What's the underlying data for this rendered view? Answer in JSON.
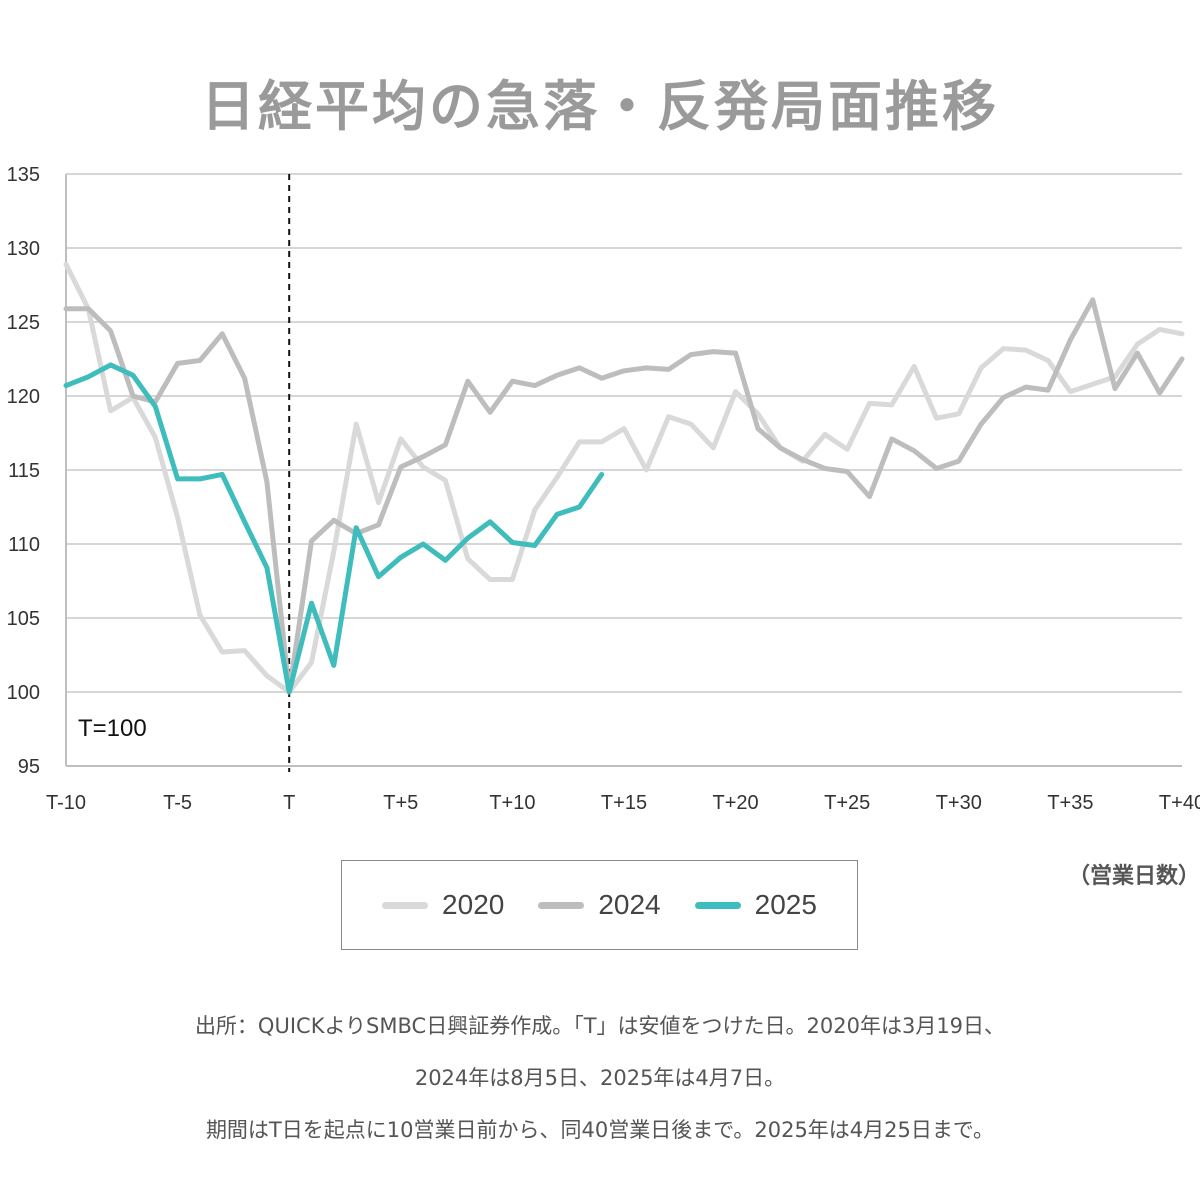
{
  "chart_data": {
    "type": "line",
    "title": "日経平均の急落・反発局面推移",
    "xlabel": "（営業日数）",
    "ylabel": "",
    "ylim": [
      95,
      135
    ],
    "xlim": [
      -10,
      40
    ],
    "y_ticks": [
      "135",
      "130",
      "125",
      "120",
      "115",
      "110",
      "105",
      "100",
      "95"
    ],
    "x_ticks": [
      "T-10",
      "T-5",
      "T",
      "T+5",
      "T+10",
      "T+15",
      "T+20",
      "T+25",
      "T+30",
      "T+35",
      "T+40"
    ],
    "grid": true,
    "reference_line": {
      "x": 0,
      "style": "dashed"
    },
    "annotation": "T=100",
    "series": [
      {
        "name": "2020",
        "color": "#d9d9d9",
        "x": [
          -10,
          -9,
          -8,
          -7,
          -6,
          -5,
          -4,
          -3,
          -2,
          -1,
          0,
          1,
          2,
          3,
          4,
          5,
          6,
          7,
          8,
          9,
          10,
          11,
          12,
          13,
          14,
          15,
          16,
          17,
          18,
          19,
          20,
          21,
          22,
          23,
          24,
          25,
          26,
          27,
          28,
          29,
          30,
          31,
          32,
          33,
          34,
          35,
          36,
          37,
          38,
          39,
          40
        ],
        "values": [
          128.9,
          125.9,
          119.0,
          119.9,
          117.2,
          111.8,
          105.2,
          102.7,
          102.8,
          101.1,
          100.0,
          102.0,
          109.5,
          118.1,
          112.8,
          117.1,
          115.2,
          114.3,
          109.0,
          107.6,
          107.6,
          112.3,
          114.5,
          116.9,
          116.9,
          117.8,
          115.0,
          118.6,
          118.1,
          116.5,
          120.3,
          118.8,
          116.5,
          115.6,
          117.4,
          116.4,
          119.5,
          119.4,
          122.0,
          118.5,
          118.8,
          121.9,
          123.2,
          123.1,
          122.4,
          120.3,
          120.8,
          121.3,
          123.5,
          124.5,
          124.2
        ]
      },
      {
        "name": "2024",
        "color": "#bdbdbd",
        "x": [
          -10,
          -9,
          -8,
          -7,
          -6,
          -5,
          -4,
          -3,
          -2,
          -1,
          0,
          1,
          2,
          3,
          4,
          5,
          6,
          7,
          8,
          9,
          10,
          11,
          12,
          13,
          14,
          15,
          16,
          17,
          18,
          19,
          20,
          21,
          22,
          23,
          24,
          25,
          26,
          27,
          28,
          29,
          30,
          31,
          32,
          33,
          34,
          35,
          36,
          37,
          38,
          39,
          40
        ],
        "values": [
          125.9,
          125.9,
          124.4,
          120.0,
          119.6,
          122.2,
          122.4,
          124.2,
          121.2,
          114.2,
          100.0,
          110.2,
          111.6,
          110.7,
          111.3,
          115.2,
          115.9,
          116.7,
          121.0,
          118.9,
          121.0,
          120.7,
          121.4,
          121.9,
          121.2,
          121.7,
          121.9,
          121.8,
          122.8,
          123.0,
          122.9,
          117.8,
          116.5,
          115.7,
          115.1,
          114.9,
          113.2,
          117.1,
          116.3,
          115.1,
          115.6,
          118.1,
          119.9,
          120.6,
          120.4,
          123.8,
          126.5,
          120.5,
          122.9,
          120.2,
          122.5
        ]
      },
      {
        "name": "2025",
        "color": "#3fbcbc",
        "x": [
          -10,
          -9,
          -8,
          -7,
          -6,
          -5,
          -4,
          -3,
          -2,
          -1,
          0,
          1,
          2,
          3,
          4,
          5,
          6,
          7,
          8,
          9,
          10,
          11,
          12,
          13,
          14
        ],
        "values": [
          120.7,
          121.3,
          122.1,
          121.4,
          119.3,
          114.4,
          114.4,
          114.7,
          111.5,
          108.4,
          100.0,
          106.0,
          101.8,
          111.1,
          107.8,
          109.1,
          110.0,
          108.9,
          110.4,
          111.5,
          110.1,
          109.9,
          112.0,
          112.5,
          114.7
        ]
      }
    ]
  },
  "legend": {
    "items": [
      {
        "label": "2020",
        "color": "#d9d9d9"
      },
      {
        "label": "2024",
        "color": "#bdbdbd"
      },
      {
        "label": "2025",
        "color": "#3fbcbc"
      }
    ]
  },
  "footnote": {
    "line1": "出所：QUICKよりSMBC日興証券作成。「T」は安値をつけた日。2020年は3月19日、",
    "line2": "2024年は8月5日、2025年は4月7日。",
    "line3": "期間はT日を起点に10営業日前から、同40営業日後まで。2025年は4月25日まで。"
  }
}
